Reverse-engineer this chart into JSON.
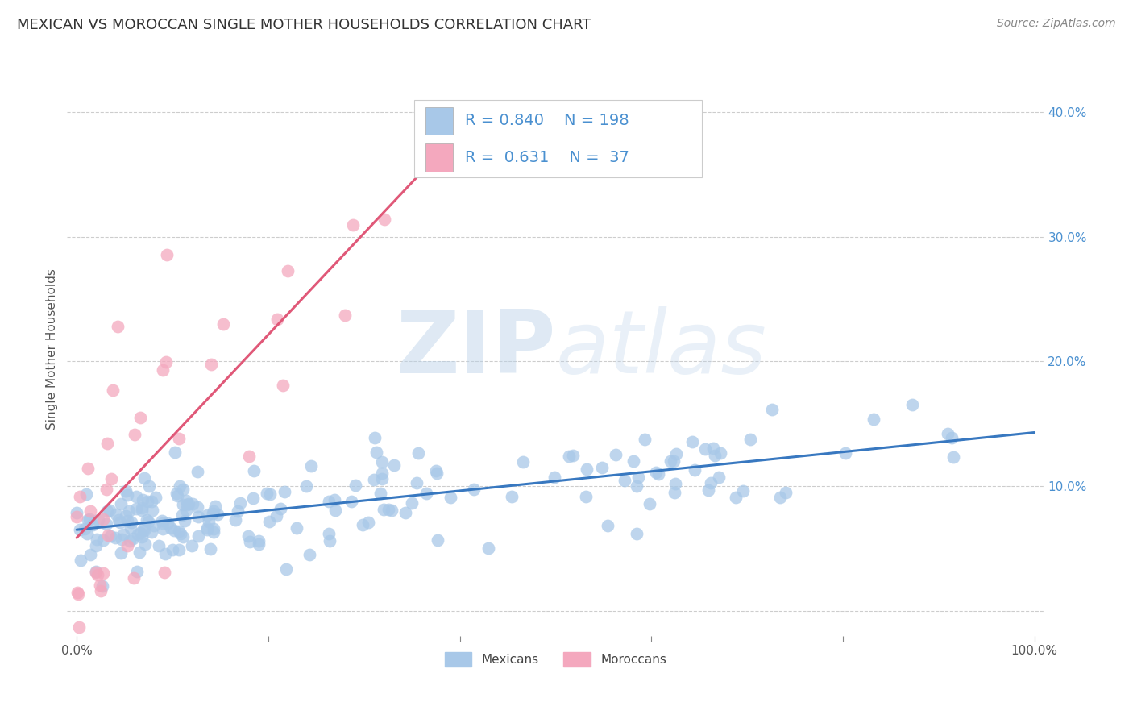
{
  "title": "MEXICAN VS MOROCCAN SINGLE MOTHER HOUSEHOLDS CORRELATION CHART",
  "source": "Source: ZipAtlas.com",
  "ylabel": "Single Mother Households",
  "xlim": [
    -0.01,
    1.01
  ],
  "ylim": [
    -0.02,
    0.44
  ],
  "yticks": [
    0.0,
    0.1,
    0.2,
    0.3,
    0.4
  ],
  "ytick_labels": [
    "",
    "10.0%",
    "20.0%",
    "30.0%",
    "40.0%"
  ],
  "xticks": [
    0.0,
    0.2,
    0.4,
    0.6,
    0.8,
    1.0
  ],
  "xtick_labels": [
    "0.0%",
    "",
    "",
    "",
    "",
    "100.0%"
  ],
  "mexican_color": "#a8c8e8",
  "moroccan_color": "#f4a8be",
  "mexican_line_color": "#3878c0",
  "moroccan_line_color": "#e05878",
  "legend_r_color": "#4a90d0",
  "background_color": "#ffffff",
  "grid_color": "#c8c8c8",
  "R_mexican": 0.84,
  "N_mexican": 198,
  "R_moroccan": 0.631,
  "N_moroccan": 37,
  "watermark_zip": "ZIP",
  "watermark_atlas": "atlas",
  "title_fontsize": 13,
  "axis_label_fontsize": 11,
  "tick_fontsize": 11,
  "legend_fontsize": 14,
  "source_fontsize": 10,
  "dot_size": 130,
  "dot_alpha": 0.75
}
